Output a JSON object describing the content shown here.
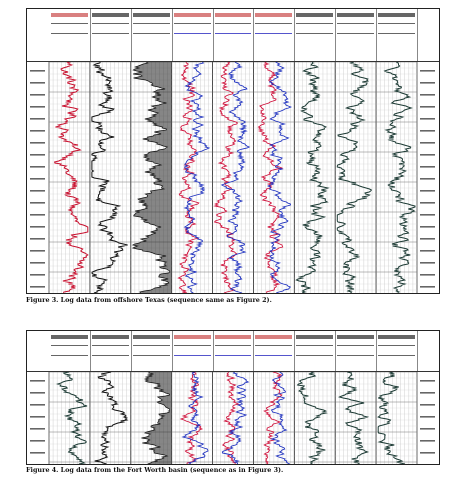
{
  "figure3": {
    "caption": "Figure 3. Log data from offshore Texas (sequence same as Figure 2).",
    "tracks": [
      {
        "kind": "curve",
        "color": "#c8102e",
        "fill": false
      },
      {
        "kind": "curve",
        "color": "#111111",
        "fill": false
      },
      {
        "kind": "curve",
        "color": "#111111",
        "fill": true
      },
      {
        "kind": "dual",
        "color": "#d0103a",
        "color2": "#1c2fbf"
      },
      {
        "kind": "dual",
        "color": "#d0103a",
        "color2": "#1c2fbf"
      },
      {
        "kind": "dual",
        "color": "#d0103a",
        "color2": "#1c2fbf"
      },
      {
        "kind": "curve",
        "color": "#1c3a34",
        "fill": false
      },
      {
        "kind": "curve",
        "color": "#1c3a34",
        "fill": false
      },
      {
        "kind": "curve",
        "color": "#1c3a34",
        "fill": false
      }
    ]
  },
  "figure4": {
    "caption": "Figure 4. Log data from the Fort Worth basin (sequence as in Figure 3).",
    "tracks": [
      {
        "kind": "curve",
        "color": "#1c3a34",
        "fill": false
      },
      {
        "kind": "curve",
        "color": "#111111",
        "fill": false
      },
      {
        "kind": "curve",
        "color": "#111111",
        "fill": true
      },
      {
        "kind": "dual",
        "color": "#d0103a",
        "color2": "#1c2fbf"
      },
      {
        "kind": "dual",
        "color": "#d0103a",
        "color2": "#1c2fbf"
      },
      {
        "kind": "dual",
        "color": "#d0103a",
        "color2": "#1c2fbf"
      },
      {
        "kind": "curve",
        "color": "#1c3a34",
        "fill": false
      },
      {
        "kind": "curve",
        "color": "#1c3a34",
        "fill": false
      },
      {
        "kind": "curve",
        "color": "#1c3a34",
        "fill": false
      }
    ]
  }
}
